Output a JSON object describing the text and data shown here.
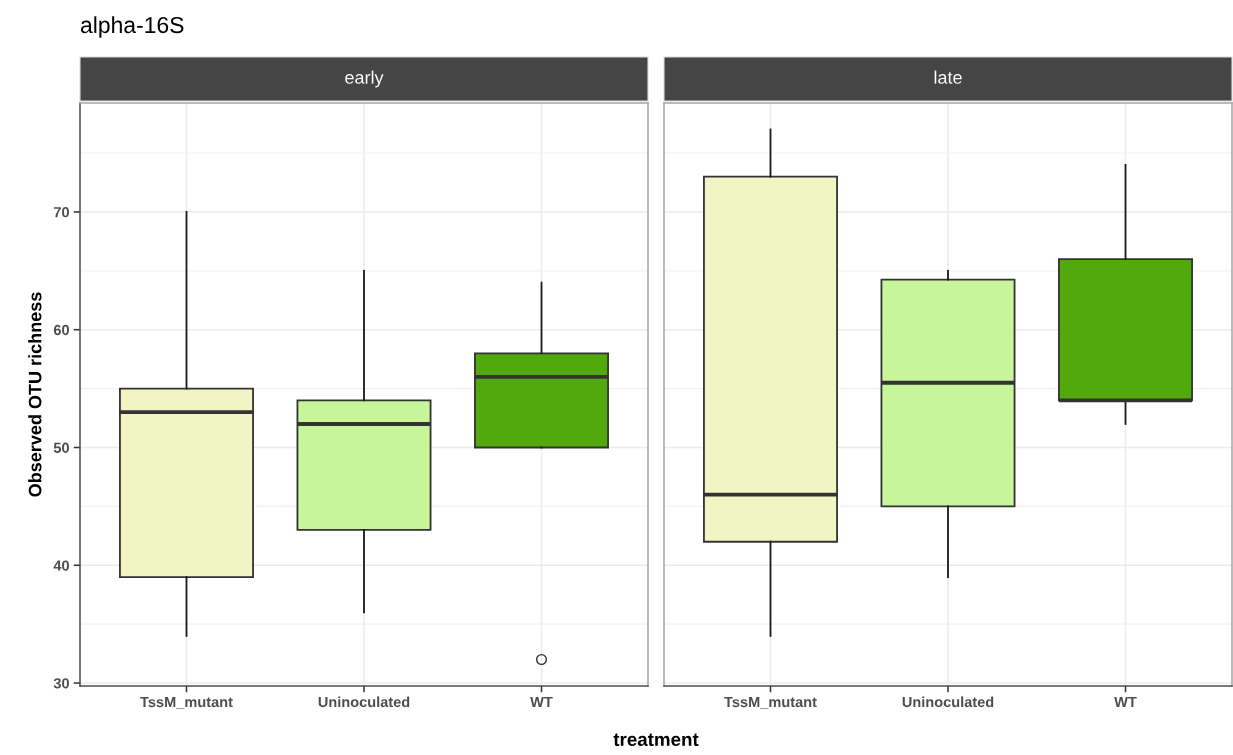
{
  "chart_data": [
    {
      "type": "box",
      "title": "alpha-16S",
      "subtitle": "early",
      "xlabel": "treatment",
      "ylabel": "Observed OTU richness",
      "categories": [
        "TssM_mutant",
        "Uninoculated",
        "WT"
      ],
      "colors": [
        "#f1f4c3",
        "#c7f59a",
        "#52a90b"
      ],
      "boxes": [
        {
          "low": 34,
          "q1": 39,
          "median": 53,
          "q3": 55,
          "high": 70
        },
        {
          "low": 36,
          "q1": 43,
          "median": 52,
          "q3": 54,
          "high": 65
        },
        {
          "low": 50,
          "q1": 50,
          "median": 56,
          "q3": 58,
          "high": 64,
          "outliers": [
            32
          ]
        }
      ],
      "ylim": [
        29.75,
        79.25
      ],
      "yticks": [
        30,
        40,
        50,
        60,
        70
      ],
      "grid": true
    },
    {
      "type": "box",
      "subtitle": "late",
      "categories": [
        "TssM_mutant",
        "Uninoculated",
        "WT"
      ],
      "colors": [
        "#f1f4c3",
        "#c7f59a",
        "#52a90b"
      ],
      "boxes": [
        {
          "low": 34,
          "q1": 42,
          "median": 46,
          "q3": 73,
          "high": 77
        },
        {
          "low": 39,
          "q1": 45,
          "median": 55.5,
          "q3": 64.25,
          "high": 65
        },
        {
          "low": 52,
          "q1": 54,
          "median": 54,
          "q3": 66,
          "high": 74
        }
      ],
      "ylim": [
        29.75,
        79.25
      ],
      "yticks": [
        30,
        40,
        50,
        60,
        70
      ],
      "grid": true,
      "tick_labels": "x"
    }
  ]
}
